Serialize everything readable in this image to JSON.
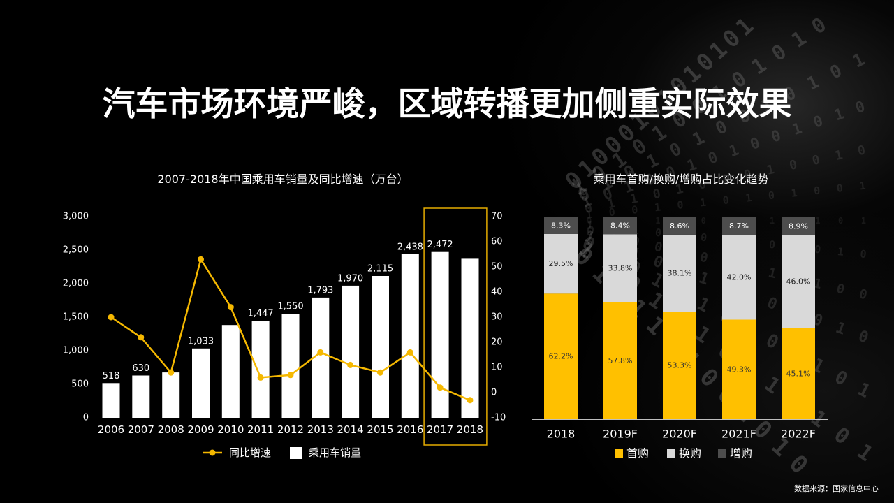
{
  "slide": {
    "title": "汽车市场环境严峻，区域转播更加侧重实际效果",
    "source": "数据来源：国家信息中心"
  },
  "colors": {
    "background": "#000000",
    "text": "#FFFFFF",
    "highlight_box": "#E5AC00",
    "axis_line": "#BFBFBF"
  },
  "background": {
    "binary_texture_rows": [
      "01000101010101",
      "1010100101010",
      "0101010010101",
      "10100101001010",
      "0110101010010",
      "1001010101001",
      "0101001010101",
      "1010101001010",
      "0100101010100",
      "1010010101010",
      "0101010100101",
      "1001010010101",
      "0101101001010"
    ]
  },
  "chart_data": [
    {
      "type": "bar",
      "title": "2007-2018年中国乘用车销量及同比增速（万台）",
      "categories": [
        "2006",
        "2007",
        "2008",
        "2009",
        "2010",
        "2011",
        "2012",
        "2013",
        "2014",
        "2015",
        "2016",
        "2017",
        "2018"
      ],
      "series": [
        {
          "name": "乘用车销量",
          "type": "bar",
          "color": "#FFFFFF",
          "values": [
            518,
            630,
            676,
            1033,
            1383,
            1447,
            1550,
            1793,
            1970,
            2115,
            2438,
            2472,
            2371
          ],
          "data_labels": [
            "518",
            "630",
            null,
            "1,033",
            null,
            "1,447",
            "1,550",
            "1,793",
            "1,970",
            "2,115",
            "2,438",
            "2,472",
            null
          ]
        },
        {
          "name": "同比增速",
          "type": "line",
          "color": "#F5B800",
          "values": [
            30,
            22,
            8,
            53,
            34,
            6,
            7,
            16,
            11,
            8,
            16,
            2,
            -3
          ]
        }
      ],
      "left_axis": {
        "range": [
          0,
          3000
        ],
        "ticks": [
          0,
          500,
          1000,
          1500,
          2000,
          2500,
          3000
        ]
      },
      "right_axis": {
        "range": [
          -10,
          70
        ],
        "ticks": [
          -10,
          0,
          10,
          20,
          30,
          40,
          50,
          60,
          70
        ]
      },
      "highlight_categories": [
        "2017",
        "2018"
      ],
      "legend": [
        "同比增速",
        "乘用车销量"
      ],
      "legend_position": "bottom",
      "grid": false
    },
    {
      "type": "bar",
      "stacked": true,
      "title": "乘用车首购/换购/增购占比变化趋势",
      "categories": [
        "2018",
        "2019F",
        "2020F",
        "2021F",
        "2022F"
      ],
      "series": [
        {
          "name": "首购",
          "color": "#FFC000",
          "values": [
            62.2,
            57.8,
            53.3,
            49.3,
            45.1
          ]
        },
        {
          "name": "换购",
          "color": "#D9D9D9",
          "values": [
            29.5,
            33.8,
            38.1,
            42.0,
            46.0
          ]
        },
        {
          "name": "增购",
          "color": "#4D4D4D",
          "values": [
            8.3,
            8.4,
            8.6,
            8.7,
            8.9
          ]
        }
      ],
      "value_suffix": "%",
      "ylim": [
        0,
        100
      ],
      "legend": [
        "首购",
        "换购",
        "增购"
      ],
      "legend_position": "bottom",
      "grid": false
    }
  ]
}
